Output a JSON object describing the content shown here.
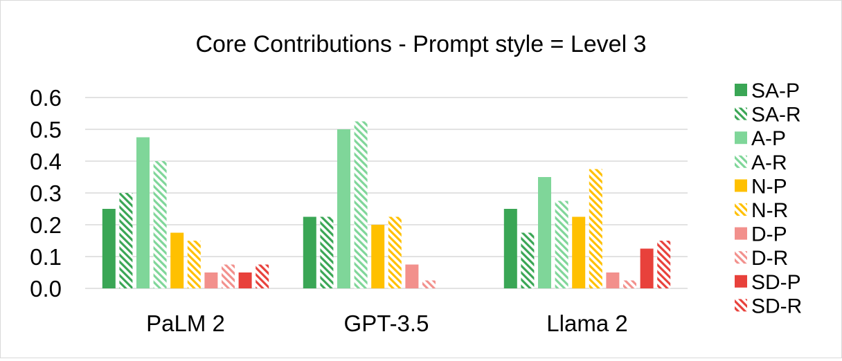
{
  "chart_data": {
    "type": "bar",
    "title": "Core Contributions - Prompt style = Level 3",
    "categories": [
      "PaLM 2",
      "GPT-3.5",
      "Llama 2"
    ],
    "ylim": [
      0,
      0.6
    ],
    "yticks": [
      "0.0",
      "0.1",
      "0.2",
      "0.3",
      "0.4",
      "0.5",
      "0.6"
    ],
    "grid": true,
    "legend_position": "right",
    "series": [
      {
        "name": "SA-P",
        "color": "#3aa655",
        "pattern": "solid",
        "values": [
          0.25,
          0.225,
          0.25
        ]
      },
      {
        "name": "SA-R",
        "color": "#3aa655",
        "pattern": "hatched",
        "values": [
          0.3,
          0.225,
          0.175
        ]
      },
      {
        "name": "A-P",
        "color": "#7fd699",
        "pattern": "solid",
        "values": [
          0.475,
          0.5,
          0.35
        ]
      },
      {
        "name": "A-R",
        "color": "#7fd699",
        "pattern": "hatched",
        "values": [
          0.4,
          0.525,
          0.275
        ]
      },
      {
        "name": "N-P",
        "color": "#ffc000",
        "pattern": "solid",
        "values": [
          0.175,
          0.2,
          0.225
        ]
      },
      {
        "name": "N-R",
        "color": "#ffc000",
        "pattern": "hatched",
        "values": [
          0.15,
          0.225,
          0.375
        ]
      },
      {
        "name": "D-P",
        "color": "#f2908c",
        "pattern": "solid",
        "values": [
          0.05,
          0.075,
          0.05
        ]
      },
      {
        "name": "D-R",
        "color": "#f2908c",
        "pattern": "hatched",
        "values": [
          0.075,
          0.025,
          0.025
        ]
      },
      {
        "name": "SD-P",
        "color": "#e8413b",
        "pattern": "solid",
        "values": [
          0.05,
          0.0,
          0.125
        ]
      },
      {
        "name": "SD-R",
        "color": "#e8413b",
        "pattern": "hatched",
        "values": [
          0.075,
          0.0,
          0.15
        ]
      }
    ]
  }
}
